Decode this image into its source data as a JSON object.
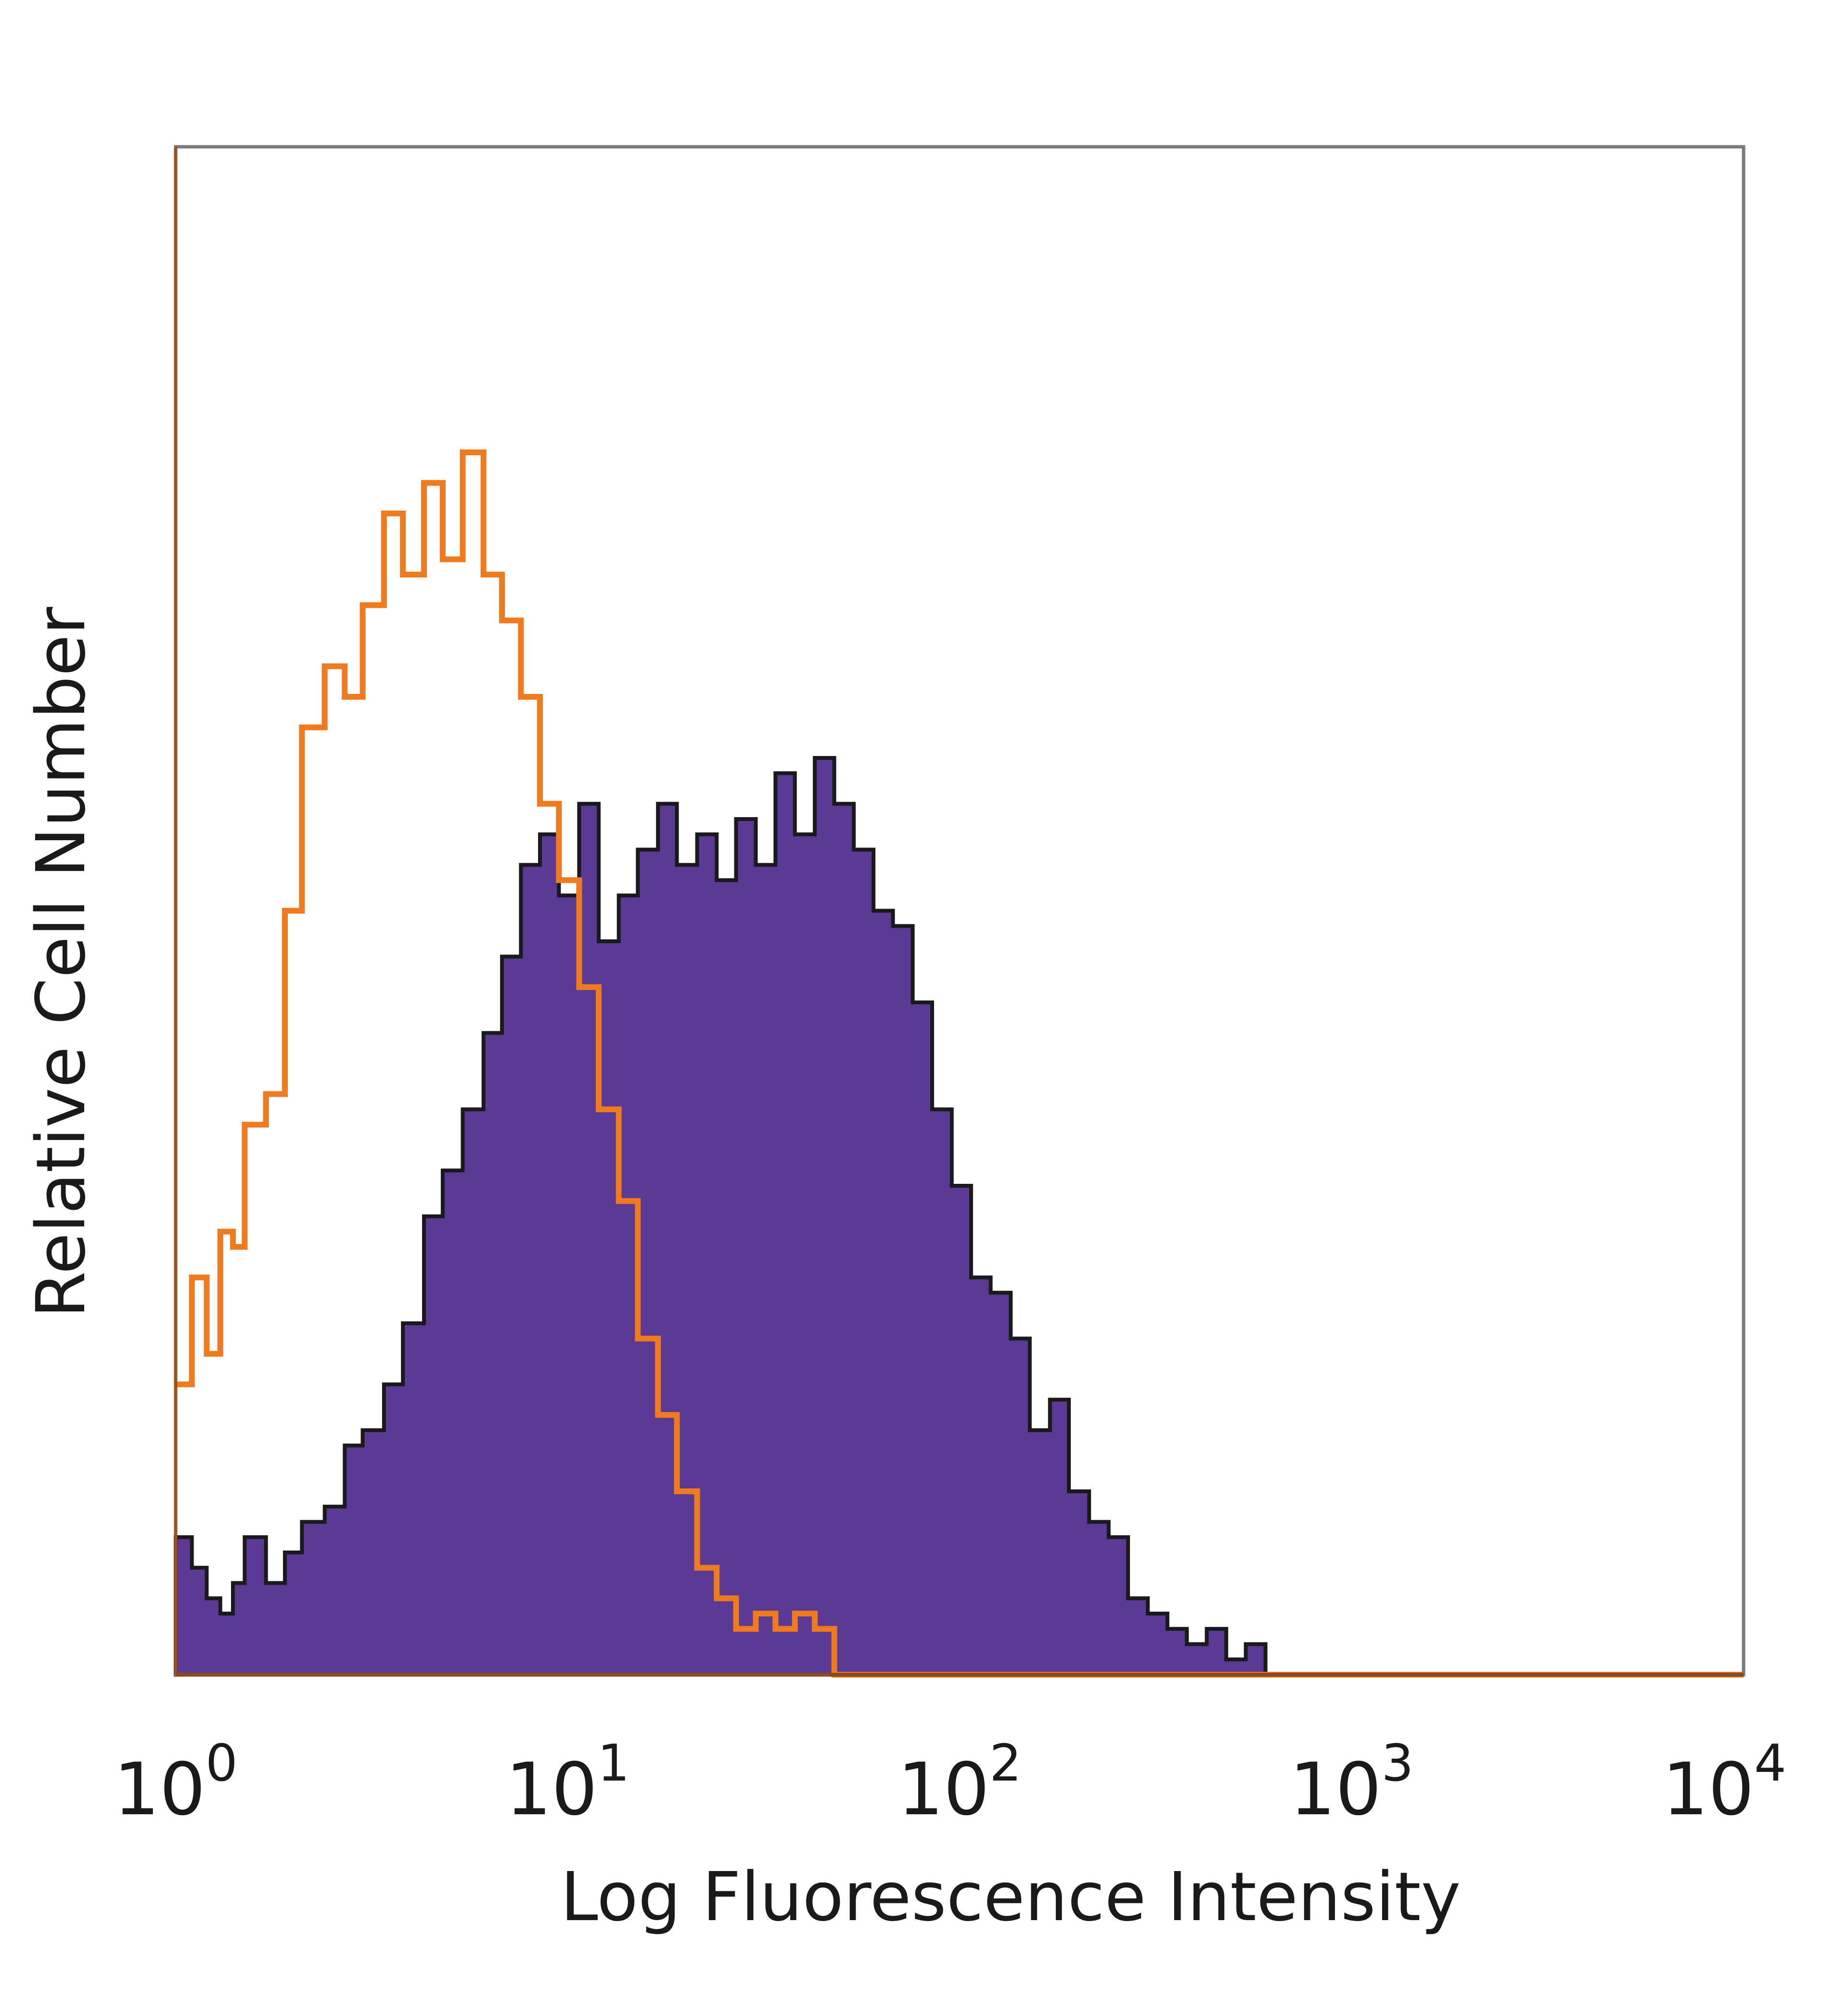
{
  "chart_data": {
    "type": "area",
    "title": "",
    "xlabel": "Log Fluorescence Intensity",
    "ylabel": "Relative Cell Number",
    "x_scale": "log",
    "xlim": [
      1,
      10000
    ],
    "ylim": [
      0,
      1
    ],
    "grid": false,
    "legend": "none",
    "x_ticks": [
      {
        "base": "10",
        "exp": "0"
      },
      {
        "base": "10",
        "exp": "1"
      },
      {
        "base": "10",
        "exp": "2"
      },
      {
        "base": "10",
        "exp": "3"
      },
      {
        "base": "10",
        "exp": "4"
      }
    ],
    "series": [
      {
        "style": "filled",
        "fill_color": "#5b3a96",
        "edge_color": "#1a1a1a",
        "x": [
          1.0,
          1.1,
          1.2,
          1.3,
          1.4,
          1.5,
          1.7,
          1.9,
          2.1,
          2.4,
          2.7,
          3.0,
          3.4,
          3.8,
          4.3,
          4.8,
          5.4,
          6.1,
          6.8,
          7.6,
          8.5,
          9.5,
          10.7,
          12.0,
          13.5,
          15.1,
          17.0,
          19.0,
          21.4,
          24.0,
          26.9,
          30.2,
          33.9,
          38.0,
          42.7,
          47.9,
          53.7,
          60.3,
          67.6,
          75.9,
          85.1,
          95.5,
          107,
          120,
          135,
          151,
          170,
          190,
          214,
          240,
          269,
          302,
          339,
          380,
          427,
          479,
          537,
          603,
          700,
          1000,
          10000
        ],
        "y": [
          0.09,
          0.07,
          0.05,
          0.04,
          0.06,
          0.09,
          0.06,
          0.08,
          0.1,
          0.11,
          0.15,
          0.16,
          0.19,
          0.23,
          0.3,
          0.33,
          0.37,
          0.42,
          0.47,
          0.53,
          0.55,
          0.51,
          0.57,
          0.48,
          0.51,
          0.54,
          0.57,
          0.53,
          0.55,
          0.52,
          0.56,
          0.53,
          0.59,
          0.55,
          0.6,
          0.57,
          0.54,
          0.5,
          0.49,
          0.44,
          0.37,
          0.32,
          0.26,
          0.25,
          0.22,
          0.16,
          0.18,
          0.12,
          0.1,
          0.09,
          0.05,
          0.04,
          0.03,
          0.02,
          0.03,
          0.01,
          0.02,
          0.0,
          0.0,
          0.0,
          0.0
        ]
      },
      {
        "style": "line",
        "line_color": "#f07a1e",
        "x": [
          1.0,
          1.1,
          1.2,
          1.3,
          1.4,
          1.5,
          1.7,
          1.9,
          2.1,
          2.4,
          2.7,
          3.0,
          3.4,
          3.8,
          4.3,
          4.8,
          5.4,
          6.1,
          6.8,
          7.6,
          8.5,
          9.5,
          10.7,
          12.0,
          13.5,
          15.1,
          17.0,
          19.0,
          21.4,
          24.0,
          26.9,
          30.2,
          33.9,
          38.0,
          42.7,
          47.9,
          53.7,
          60.3,
          10000
        ],
        "y": [
          0.19,
          0.26,
          0.21,
          0.29,
          0.28,
          0.36,
          0.38,
          0.5,
          0.62,
          0.66,
          0.64,
          0.7,
          0.76,
          0.72,
          0.78,
          0.73,
          0.8,
          0.72,
          0.69,
          0.64,
          0.57,
          0.52,
          0.45,
          0.37,
          0.31,
          0.22,
          0.17,
          0.12,
          0.07,
          0.05,
          0.03,
          0.04,
          0.03,
          0.04,
          0.03,
          0.0,
          0.0,
          0.0,
          0.0
        ]
      }
    ]
  }
}
